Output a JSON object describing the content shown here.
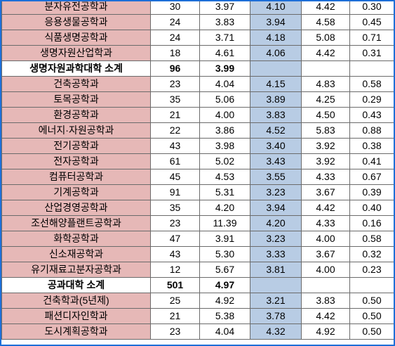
{
  "rows": [
    {
      "type": "dept",
      "name": "분자유전공학과",
      "c1": "30",
      "c2": "3.97",
      "c3": "4.10",
      "c4": "4.42",
      "c5": "0.30"
    },
    {
      "type": "dept",
      "name": "응용생물공학과",
      "c1": "24",
      "c2": "3.83",
      "c3": "3.94",
      "c4": "4.58",
      "c5": "0.45"
    },
    {
      "type": "dept",
      "name": "식품생명공학과",
      "c1": "24",
      "c2": "3.71",
      "c3": "4.18",
      "c4": "5.08",
      "c5": "0.71"
    },
    {
      "type": "dept",
      "name": "생명자원산업학과",
      "c1": "18",
      "c2": "4.61",
      "c3": "4.06",
      "c4": "4.42",
      "c5": "0.31"
    },
    {
      "type": "subtotal",
      "name": "생명자원과학대학 소계",
      "c1": "96",
      "c2": "3.99",
      "c3": "",
      "c4": "",
      "c5": ""
    },
    {
      "type": "dept",
      "name": "건축공학과",
      "c1": "23",
      "c2": "4.04",
      "c3": "4.15",
      "c4": "4.83",
      "c5": "0.58"
    },
    {
      "type": "dept",
      "name": "토목공학과",
      "c1": "35",
      "c2": "5.06",
      "c3": "3.89",
      "c4": "4.25",
      "c5": "0.29"
    },
    {
      "type": "dept",
      "name": "환경공학과",
      "c1": "21",
      "c2": "4.00",
      "c3": "3.83",
      "c4": "4.50",
      "c5": "0.43"
    },
    {
      "type": "dept",
      "name": "에너지·자원공학과",
      "c1": "22",
      "c2": "3.86",
      "c3": "4.52",
      "c4": "5.83",
      "c5": "0.88"
    },
    {
      "type": "dept",
      "name": "전기공학과",
      "c1": "43",
      "c2": "3.98",
      "c3": "3.40",
      "c4": "3.92",
      "c5": "0.38"
    },
    {
      "type": "dept",
      "name": "전자공학과",
      "c1": "61",
      "c2": "5.02",
      "c3": "3.43",
      "c4": "3.92",
      "c5": "0.41"
    },
    {
      "type": "dept",
      "name": "컴퓨터공학과",
      "c1": "45",
      "c2": "4.53",
      "c3": "3.55",
      "c4": "4.33",
      "c5": "0.67"
    },
    {
      "type": "dept",
      "name": "기계공학과",
      "c1": "91",
      "c2": "5.31",
      "c3": "3.23",
      "c4": "3.67",
      "c5": "0.39"
    },
    {
      "type": "dept",
      "name": "산업경영공학과",
      "c1": "35",
      "c2": "4.20",
      "c3": "3.94",
      "c4": "4.42",
      "c5": "0.40"
    },
    {
      "type": "dept",
      "name": "조선해양플랜트공학과",
      "c1": "23",
      "c2": "11.39",
      "c3": "4.20",
      "c4": "4.33",
      "c5": "0.16"
    },
    {
      "type": "dept",
      "name": "화학공학과",
      "c1": "47",
      "c2": "3.91",
      "c3": "3.23",
      "c4": "4.00",
      "c5": "0.58"
    },
    {
      "type": "dept",
      "name": "신소재공학과",
      "c1": "43",
      "c2": "5.30",
      "c3": "3.33",
      "c4": "3.67",
      "c5": "0.32"
    },
    {
      "type": "dept",
      "name": "유기재료고분자공학과",
      "c1": "12",
      "c2": "5.67",
      "c3": "3.81",
      "c4": "4.00",
      "c5": "0.23"
    },
    {
      "type": "subtotal",
      "name": "공과대학 소계",
      "c1": "501",
      "c2": "4.97",
      "c3": "",
      "c4": "",
      "c5": ""
    },
    {
      "type": "dept",
      "name": "건축학과(5년제)",
      "c1": "25",
      "c2": "4.92",
      "c3": "3.21",
      "c4": "3.83",
      "c5": "0.50"
    },
    {
      "type": "dept",
      "name": "패션디자인학과",
      "c1": "21",
      "c2": "5.38",
      "c3": "3.78",
      "c4": "4.42",
      "c5": "0.50"
    },
    {
      "type": "dept",
      "name": "도시계획공학과",
      "c1": "23",
      "c2": "4.04",
      "c3": "4.32",
      "c4": "4.92",
      "c5": "0.50"
    }
  ]
}
